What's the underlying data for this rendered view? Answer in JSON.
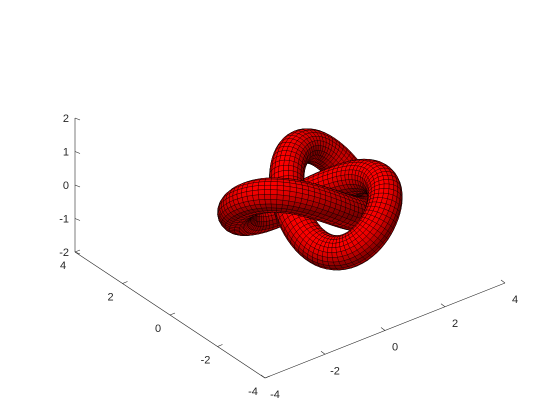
{
  "chart_data": {
    "type": "surface",
    "title": "",
    "xlabel": "",
    "ylabel": "",
    "zlabel": "",
    "grid": false,
    "surface": "trefoil knot tube",
    "face_color": "#ff0000",
    "edge_color": "#000000",
    "x_ticks": [
      "-4",
      "-2",
      "0",
      "2",
      "4"
    ],
    "y_ticks": [
      "-4",
      "-2",
      "0",
      "2",
      "4"
    ],
    "z_ticks": [
      "-2",
      "-1",
      "0",
      "1",
      "2"
    ],
    "xlim": [
      -4,
      4
    ],
    "ylim": [
      -4,
      4
    ],
    "zlim": [
      -2,
      2
    ]
  }
}
